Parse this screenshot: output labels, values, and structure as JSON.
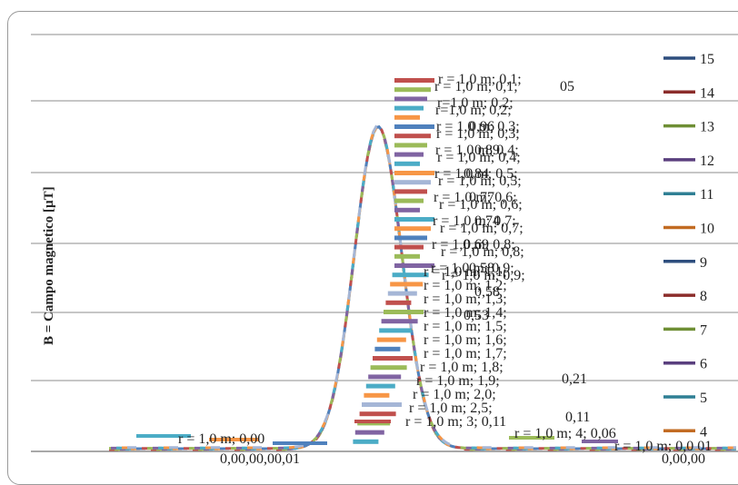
{
  "chart_data": {
    "type": "line",
    "ylabel": "B = Campo magnetico [µT]",
    "grid": true,
    "legend_placement": "right",
    "legend": [
      "15",
      "14",
      "13",
      "12",
      "11",
      "10",
      "9",
      "8",
      "7",
      "6",
      "5",
      "4"
    ],
    "colors": [
      "#2e4e7e",
      "#8b2c2a",
      "#6f8f35",
      "#5a3f7e",
      "#2f7f94",
      "#c26b22",
      "#2e4e7e",
      "#8b2c2a",
      "#6f8f35",
      "#5a3f7e",
      "#2f7f94",
      "#c26b22"
    ],
    "label_colors": [
      "#c0504d",
      "#9bbb59",
      "#8064a2",
      "#4bacc6",
      "#f79646",
      "#4f81bd",
      "#c0504d",
      "#9bbb59",
      "#8064a2",
      "#4bacc6",
      "#f79646",
      "#a5b6d6"
    ],
    "peak_labels": [
      "r = 1,0 m; 0,1;",
      "r=1,0 m; 0,2;",
      "r = 1,0 m; 0,3;",
      "r = 1,0 m; 0,4;",
      "r = 1,0 m; 0,5;",
      "r = 1,0 m; 0,6;",
      "r = 1,0 m; 0,7;",
      "r = 1,0 m; 0,8;",
      "r = 1,0 m; 0,9;"
    ],
    "peak_values": [
      "05",
      "0,96",
      "0,89",
      "0,84",
      "0,77",
      "0,74",
      "0,69",
      "0,58",
      "0,58",
      "0,53"
    ],
    "mid_labels": [
      "r = 1,0 m; 1,1;",
      "r = 1,0 m; 1,2;",
      "r = 1,0 m; 1,3;",
      "r = 1,0 m; 1,4;",
      "r = 1,0 m; 1,5;",
      "r = 1,0 m; 1,6;",
      "r = 1,0 m; 1,7;",
      "r = 1,0 m; 1,8;",
      "r = 1,0 m; 1,9;",
      "r = 1,0 m; 2,0;",
      "r = 1,0 m; 2,5;",
      "r = 1,0 m; 3; 0,11"
    ],
    "mid_values": [
      "0,21",
      "0,11"
    ],
    "bottom_labels": [
      "r = 1,0 m; 0,00",
      "r = 1,0 m; 4; 0,06",
      "r = 1,0 m; 0,0 01"
    ],
    "bottom_value": "0,00,00,00,01",
    "right_bottom_value": "0,00,00"
  }
}
